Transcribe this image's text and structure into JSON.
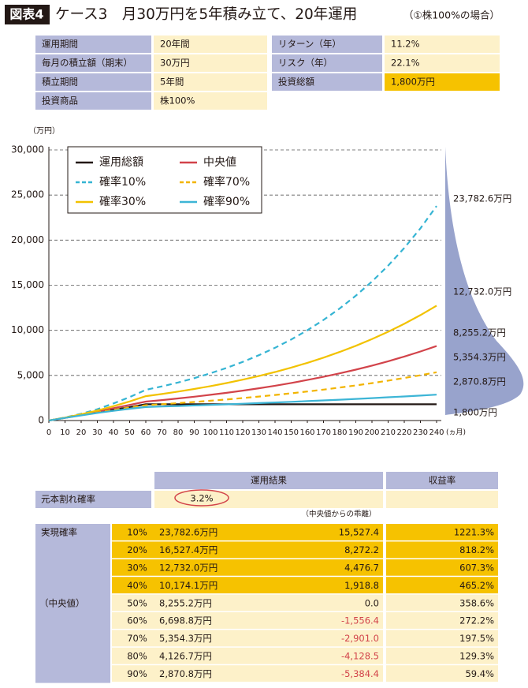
{
  "header": {
    "badge": "図表4",
    "title": "ケース3　月30万円を5年積み立て、20年運用",
    "subtitle": "（①株100%の場合）"
  },
  "params": {
    "left": [
      [
        "運用期間",
        "20年間"
      ],
      [
        "毎月の積立額（期末）",
        "30万円"
      ],
      [
        "積立期間",
        "5年間"
      ],
      [
        "投資商品",
        "株100%"
      ]
    ],
    "right": [
      [
        "リターン（年）",
        "11.2%"
      ],
      [
        "リスク（年）",
        "22.1%"
      ],
      [
        "投資総額",
        "1,800万円"
      ]
    ]
  },
  "chart_data": {
    "type": "line",
    "y_label": "（万円）",
    "x_label": "(ヵ月)",
    "x": [
      0,
      10,
      20,
      30,
      40,
      50,
      60,
      70,
      80,
      90,
      100,
      110,
      120,
      130,
      140,
      150,
      160,
      170,
      180,
      190,
      200,
      210,
      220,
      230,
      240
    ],
    "xlim": [
      0,
      240
    ],
    "xticks": [
      0,
      10,
      20,
      30,
      40,
      50,
      60,
      70,
      80,
      90,
      100,
      110,
      120,
      130,
      140,
      150,
      160,
      170,
      180,
      190,
      200,
      210,
      220,
      230,
      240
    ],
    "ylim": [
      0,
      30000
    ],
    "yticks": [
      0,
      {
        "value": 5000,
        "label": "5,000"
      },
      {
        "value": 10000,
        "label": "10,000"
      },
      {
        "value": 15000,
        "label": "15,000"
      },
      {
        "value": 20000,
        "label": "20,000"
      },
      {
        "value": 25000,
        "label": "25,000"
      },
      {
        "value": 30000,
        "label": "30,000"
      }
    ],
    "grid": true,
    "series": [
      {
        "name": "運用総額",
        "color": "#231815",
        "dashed": false,
        "values": [
          0,
          300,
          600,
          900,
          1200,
          1500,
          1800,
          1800,
          1800,
          1800,
          1800,
          1800,
          1800,
          1800,
          1800,
          1800,
          1800,
          1800,
          1800,
          1800,
          1800,
          1800,
          1800,
          1800,
          1800
        ]
      },
      {
        "name": "中央値",
        "color": "#d2434a",
        "dashed": false,
        "values": [
          0,
          310,
          640,
          990,
          1370,
          1730,
          2100,
          2266,
          2445,
          2638,
          2847,
          3072,
          3314,
          3576,
          3859,
          4164,
          4493,
          4848,
          5231,
          5644,
          6090,
          6572,
          7091,
          7651,
          8255.2
        ]
      },
      {
        "name": "確率10%",
        "color": "#35b4d3",
        "dashed": true,
        "values": [
          0,
          340,
          750,
          1250,
          1900,
          2600,
          3400,
          3788,
          4220,
          4701,
          5237,
          5834,
          6499,
          7240,
          8065,
          8985,
          10009,
          11150,
          12421,
          13837,
          15414,
          17171,
          19129,
          21309,
          23782.6
        ]
      },
      {
        "name": "確率70%",
        "color": "#f2b400",
        "dashed": true,
        "values": [
          0,
          300,
          600,
          900,
          1180,
          1450,
          1700,
          1812,
          1931,
          2058,
          2194,
          2338,
          2492,
          2656,
          2831,
          3017,
          3216,
          3428,
          3653,
          3894,
          4150,
          4423,
          4714,
          5024,
          5354.3
        ]
      },
      {
        "name": "確率30%",
        "color": "#f2c200",
        "dashed": false,
        "values": [
          0,
          320,
          690,
          1110,
          1590,
          2120,
          2700,
          2943,
          3208,
          3497,
          3812,
          4155,
          4529,
          4937,
          5381,
          5866,
          6394,
          6969,
          7597,
          8281,
          9026,
          9838,
          10724,
          11689,
          12732
        ]
      },
      {
        "name": "確率90%",
        "color": "#3db5d6",
        "dashed": false,
        "values": [
          0,
          290,
          570,
          840,
          1080,
          1300,
          1500,
          1555,
          1612,
          1671,
          1733,
          1796,
          1862,
          1930,
          2001,
          2075,
          2151,
          2230,
          2312,
          2396,
          2484,
          2576,
          2670,
          2768,
          2870.8
        ]
      }
    ],
    "annotations": [
      "23,782.6万円",
      "12,732.0万円",
      "8,255.2万円",
      "5,354.3万円",
      "2,870.8万円",
      "1,800万円"
    ]
  },
  "results_table": {
    "headers": [
      "運用結果",
      "収益率"
    ],
    "loss_probability": {
      "label": "元本割れ確率",
      "value": "3.2%"
    },
    "deviation_note": "（中央値からの乖離）",
    "group_labels": [
      "実現確率",
      "（中央値）"
    ],
    "rows": [
      [
        "10%",
        "23,782.6万円",
        "15,527.4",
        "1221.3%"
      ],
      [
        "20%",
        "16,527.4万円",
        "8,272.2",
        "818.2%"
      ],
      [
        "30%",
        "12,732.0万円",
        "4,476.7",
        "607.3%"
      ],
      [
        "40%",
        "10,174.1万円",
        "1,918.8",
        "465.2%"
      ],
      [
        "50%",
        "8,255.2万円",
        "0.0",
        "358.6%"
      ],
      [
        "60%",
        "6,698.8万円",
        "-1,556.4",
        "272.2%"
      ],
      [
        "70%",
        "5,354.3万円",
        "-2,901.0",
        "197.5%"
      ],
      [
        "80%",
        "4,126.7万円",
        "-4,128.5",
        "129.3%"
      ],
      [
        "90%",
        "2,870.8万円",
        "-5,384.4",
        "59.4%"
      ]
    ]
  }
}
